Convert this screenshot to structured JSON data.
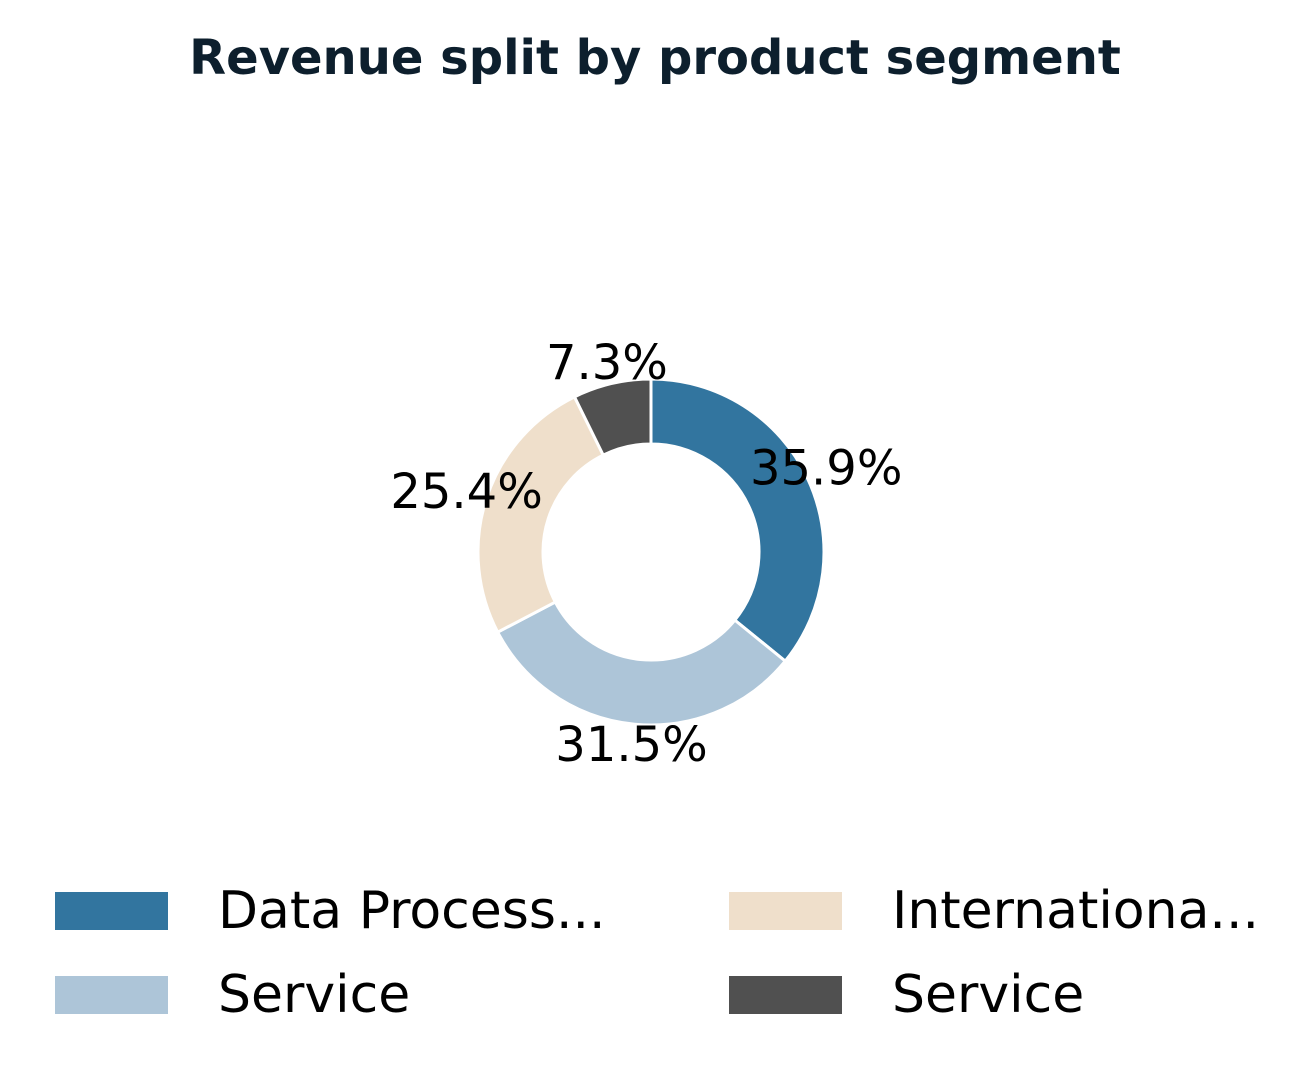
{
  "chart_data": {
    "type": "pie",
    "variant": "donut",
    "title": "Revenue split by product segment",
    "slices": [
      {
        "label": "Data Process...",
        "value": 35.9,
        "display": "35.9%",
        "color": "#32759f"
      },
      {
        "label": "Service",
        "value": 31.5,
        "display": "31.5%",
        "color": "#adc5d8"
      },
      {
        "label": "Internationa...",
        "value": 25.4,
        "display": "25.4%",
        "color": "#efdfcb"
      },
      {
        "label": "Service",
        "value": 7.3,
        "display": "7.3%",
        "color": "#505050"
      }
    ],
    "start_angle_deg": 90,
    "direction": "clockwise",
    "legend_position": "bottom",
    "legend_columns": 2
  }
}
